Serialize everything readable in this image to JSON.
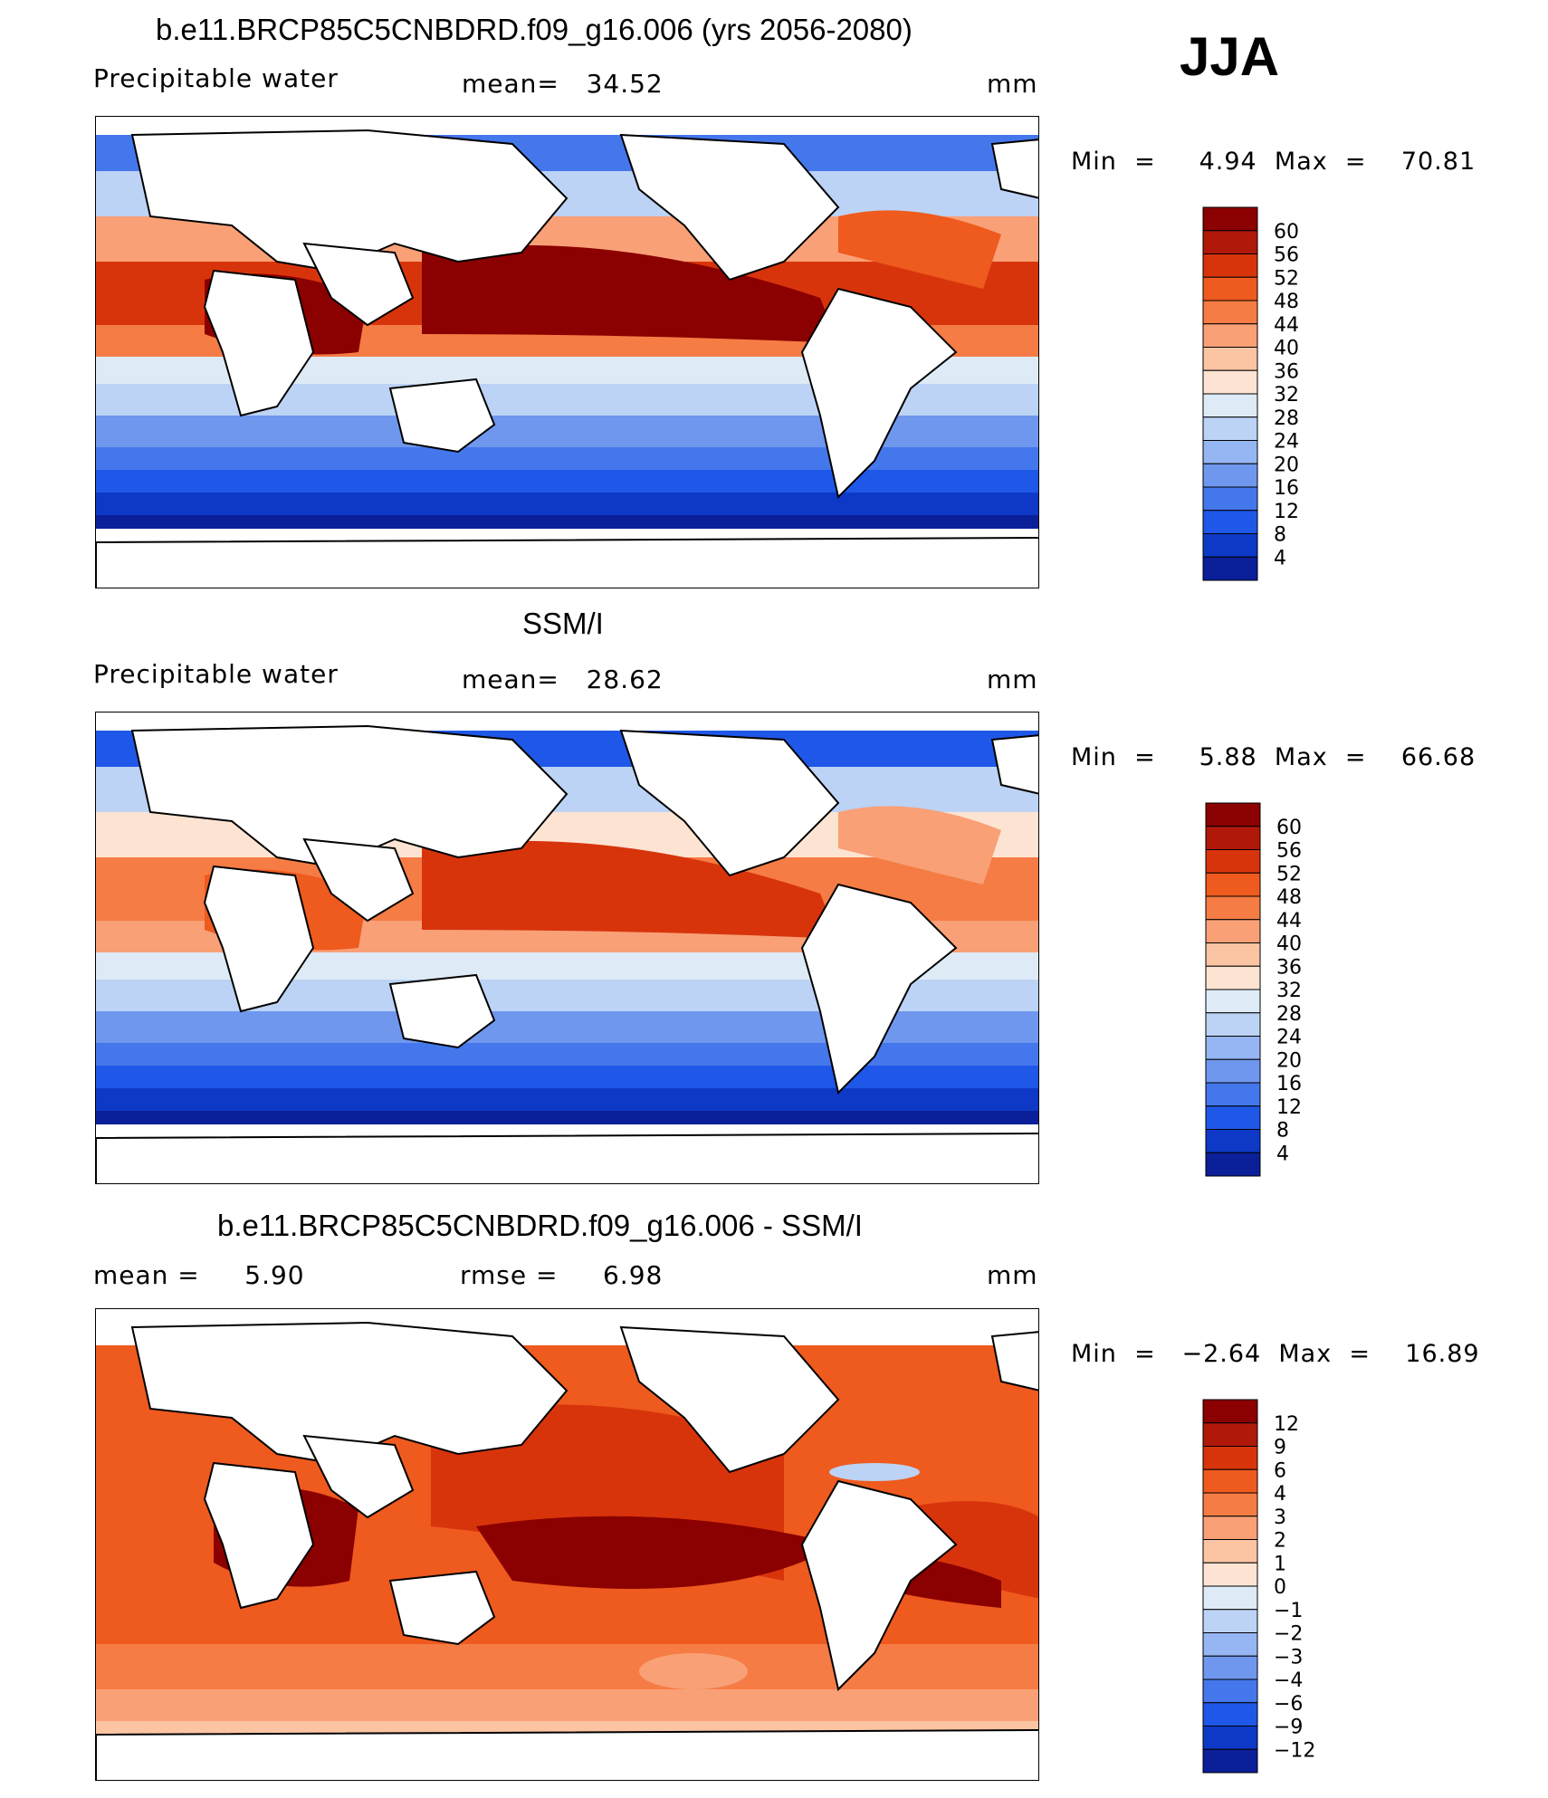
{
  "season": "JJA",
  "panels": [
    {
      "title": "b.e11.BRCP85C5CNBDRD.f09_g16.006 (yrs 2056-2080)",
      "left_label": "Precipitable water",
      "center_label": "mean=   34.52",
      "units": "mm",
      "minmax": "Min  =     4.94  Max  =    70.81",
      "colorbar_labels": [
        "60",
        "56",
        "52",
        "48",
        "44",
        "40",
        "36",
        "32",
        "28",
        "24",
        "20",
        "16",
        "12",
        "8",
        "4"
      ],
      "colors": [
        "#8b0000",
        "#b0180a",
        "#d8340c",
        "#ef5a1e",
        "#f57c44",
        "#f9a077",
        "#fbc4a3",
        "#fde4d2",
        "#deebf7",
        "#bcd3f5",
        "#95b6f2",
        "#6f97ee",
        "#4577ec",
        "#1f58e8",
        "#0d39c6",
        "#0a1f98",
        "#050f78"
      ],
      "kind": "model"
    },
    {
      "title": "SSM/I",
      "left_label": "Precipitable water",
      "center_label": "mean=   28.62",
      "units": "mm",
      "minmax": "Min  =     5.88  Max  =    66.68",
      "colorbar_labels": [
        "60",
        "56",
        "52",
        "48",
        "44",
        "40",
        "36",
        "32",
        "28",
        "24",
        "20",
        "16",
        "12",
        "8",
        "4"
      ],
      "colors": [
        "#8b0000",
        "#b0180a",
        "#d8340c",
        "#ef5a1e",
        "#f57c44",
        "#f9a077",
        "#fbc4a3",
        "#fde4d2",
        "#deebf7",
        "#bcd3f5",
        "#95b6f2",
        "#6f97ee",
        "#4577ec",
        "#1f58e8",
        "#0d39c6",
        "#0a1f98",
        "#050f78"
      ],
      "kind": "obs"
    },
    {
      "title": "b.e11.BRCP85C5CNBDRD.f09_g16.006 - SSM/I",
      "left_label": "mean =     5.90",
      "center_label": "rmse =     6.98",
      "units": "mm",
      "minmax": "Min  =   −2.64  Max  =    16.89",
      "colorbar_labels": [
        "12",
        "9",
        "6",
        "4",
        "3",
        "2",
        "1",
        "0",
        "−1",
        "−2",
        "−3",
        "−4",
        "−6",
        "−9",
        "−12"
      ],
      "colors": [
        "#8b0000",
        "#b0180a",
        "#d8340c",
        "#ef5a1e",
        "#f57c44",
        "#f9a077",
        "#fbc4a3",
        "#fde4d2",
        "#deebf7",
        "#bcd3f5",
        "#95b6f2",
        "#6f97ee",
        "#4577ec",
        "#1f58e8",
        "#0d39c6",
        "#0a1f98",
        "#050f78"
      ],
      "kind": "diff"
    }
  ],
  "chart_data": [
    {
      "type": "heatmap",
      "title": "b.e11.BRCP85C5CNBDRD.f09_g16.006 (yrs 2056-2080)",
      "variable": "Precipitable water",
      "units": "mm",
      "mean": 34.52,
      "min": 4.94,
      "max": 70.81,
      "contour_levels": [
        4,
        8,
        12,
        16,
        20,
        24,
        28,
        32,
        36,
        40,
        44,
        48,
        52,
        56,
        60
      ]
    },
    {
      "type": "heatmap",
      "title": "SSM/I",
      "variable": "Precipitable water",
      "units": "mm",
      "mean": 28.62,
      "min": 5.88,
      "max": 66.68,
      "contour_levels": [
        4,
        8,
        12,
        16,
        20,
        24,
        28,
        32,
        36,
        40,
        44,
        48,
        52,
        56,
        60
      ]
    },
    {
      "type": "heatmap",
      "title": "b.e11.BRCP85C5CNBDRD.f09_g16.006 - SSM/I",
      "units": "mm",
      "mean": 5.9,
      "rmse": 6.98,
      "min": -2.64,
      "max": 16.89,
      "contour_levels": [
        -12,
        -9,
        -6,
        -4,
        -3,
        -2,
        -1,
        0,
        1,
        2,
        3,
        4,
        6,
        9,
        12
      ]
    }
  ]
}
